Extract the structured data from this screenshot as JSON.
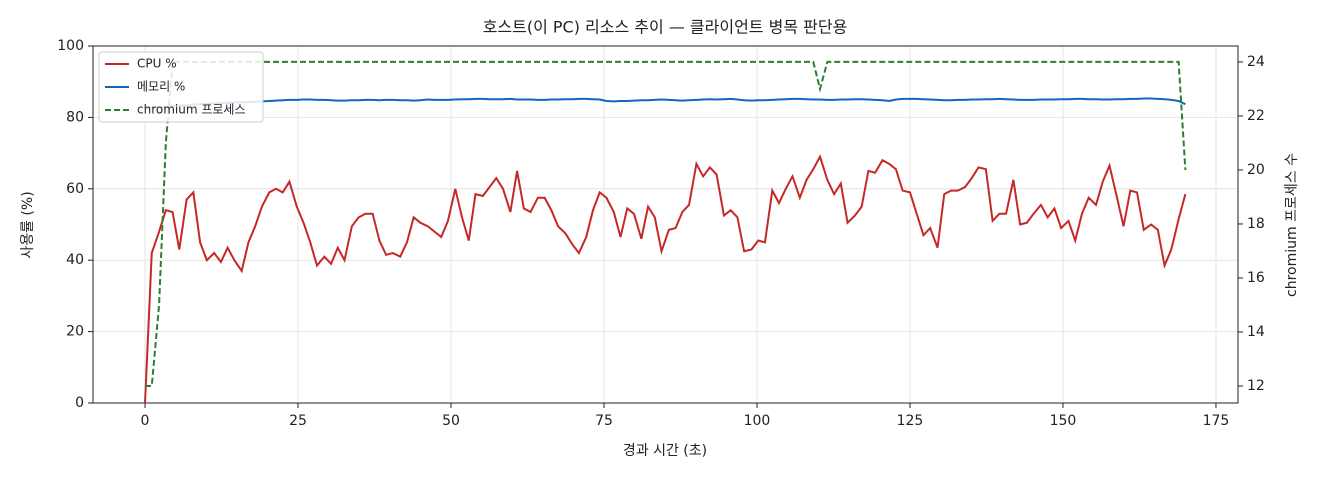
{
  "chart_data": {
    "type": "line",
    "title": "호스트(이 PC) 리소스 추이 — 클라이언트 병목 판단용",
    "xlabel": "경과 시간 (초)",
    "ylabel": "사용률 (%)",
    "y2label": "chromium 프로세스 수",
    "x": [
      0,
      1.1,
      2.3,
      3.4,
      4.5,
      5.6,
      6.8,
      7.9,
      9.0,
      10.1,
      11.3,
      12.4,
      13.5,
      14.6,
      15.8,
      16.9,
      18.0,
      19.1,
      20.3,
      21.4,
      22.5,
      23.6,
      24.8,
      25.9,
      27.0,
      28.1,
      29.3,
      30.4,
      31.5,
      32.6,
      33.8,
      34.9,
      36.0,
      37.2,
      38.3,
      39.4,
      40.5,
      41.7,
      42.8,
      43.9,
      45.0,
      46.2,
      47.3,
      48.4,
      49.5,
      50.7,
      51.8,
      52.9,
      54.0,
      55.2,
      56.3,
      57.4,
      58.5,
      59.7,
      60.8,
      61.9,
      63.0,
      64.2,
      65.3,
      66.4,
      67.5,
      68.7,
      69.8,
      70.9,
      72.1,
      73.2,
      74.3,
      75.4,
      76.6,
      77.7,
      78.8,
      79.9,
      81.1,
      82.2,
      83.3,
      84.4,
      85.6,
      86.7,
      87.8,
      88.9,
      90.1,
      91.2,
      92.3,
      93.4,
      94.6,
      95.7,
      96.8,
      97.9,
      99.1,
      100.2,
      101.3,
      102.5,
      103.6,
      104.7,
      105.8,
      107.0,
      108.1,
      109.2,
      110.3,
      111.5,
      112.6,
      113.7,
      114.8,
      116.0,
      117.1,
      118.2,
      119.3,
      120.5,
      121.6,
      122.7,
      123.8,
      125.0,
      126.1,
      127.2,
      128.3,
      129.5,
      130.6,
      131.7,
      132.8,
      134.0,
      135.1,
      136.2,
      137.4,
      138.5,
      139.6,
      140.7,
      141.9,
      143.0,
      144.1,
      145.2,
      146.4,
      147.5,
      148.6,
      149.7,
      150.9,
      152.0,
      153.1,
      154.2,
      155.4,
      156.5,
      157.6,
      158.7,
      159.9,
      161.0,
      162.1,
      163.2,
      164.4,
      165.5,
      166.6,
      167.7,
      168.9,
      170.0
    ],
    "series": [
      {
        "name": "CPU %",
        "color": "#c62828",
        "linestyle": "solid",
        "values": [
          0,
          42,
          48,
          54,
          53.5,
          43,
          57,
          59,
          45,
          40,
          42,
          39.5,
          43.5,
          40,
          37,
          45,
          49.5,
          55,
          59,
          60,
          59,
          62,
          55,
          50.5,
          45,
          38.5,
          41,
          39,
          43.5,
          40,
          49.5,
          52,
          53,
          53,
          45.5,
          41.5,
          42,
          41,
          45,
          52,
          50.5,
          49.5,
          48,
          46.5,
          51,
          60,
          52,
          45.5,
          58.5,
          58,
          60.5,
          63,
          60,
          53.5,
          65,
          54.5,
          53.5,
          57.5,
          57.5,
          54,
          49.5,
          47.5,
          44.5,
          42,
          46.5,
          54,
          59,
          57.5,
          53.5,
          46.5,
          54.5,
          53,
          46,
          55,
          52,
          42.5,
          48.5,
          49,
          53.5,
          55.5,
          67,
          63.5,
          66,
          64,
          52.5,
          54,
          52,
          42.5,
          43,
          45.5,
          45,
          59.5,
          56,
          60,
          63.5,
          57.5,
          62.5,
          65.5,
          69,
          62.5,
          58.5,
          61.5,
          50.5,
          52.5,
          55,
          65,
          64.5,
          68,
          67,
          65.5,
          59.5,
          59,
          53,
          47,
          49,
          43.5,
          58.5,
          59.5,
          59.5,
          60.5,
          63,
          66,
          65.5,
          51,
          53,
          53,
          62.5,
          50,
          50.5,
          53,
          55.5,
          52,
          54.5,
          49,
          51,
          45.5,
          53,
          57.5,
          55.5,
          62,
          66.5,
          58.5,
          49.5,
          59.5,
          59,
          48.5,
          50,
          48.5,
          38.5,
          43,
          51.5,
          58.5
        ]
      },
      {
        "name": "메모리 %",
        "color": "#1565c0",
        "linestyle": "solid",
        "values": [
          82.5,
          82.7,
          82.9,
          83.0,
          83.2,
          83.3,
          83.4,
          83.6,
          83.7,
          83.8,
          83.9,
          84.0,
          84.1,
          84.2,
          84.2,
          84.3,
          84.4,
          84.5,
          84.6,
          84.7,
          84.8,
          84.9,
          84.9,
          85.0,
          85.0,
          84.9,
          84.9,
          84.8,
          84.7,
          84.7,
          84.8,
          84.8,
          84.9,
          84.9,
          84.8,
          84.9,
          84.9,
          84.8,
          84.8,
          84.7,
          84.8,
          85.0,
          84.9,
          84.9,
          84.9,
          85.0,
          85.1,
          85.1,
          85.2,
          85.2,
          85.1,
          85.1,
          85.1,
          85.2,
          85.0,
          85.0,
          85.0,
          84.9,
          84.9,
          85.0,
          85.0,
          85.1,
          85.1,
          85.2,
          85.2,
          85.1,
          85.0,
          84.6,
          84.5,
          84.6,
          84.6,
          84.7,
          84.8,
          84.8,
          84.9,
          85.0,
          84.9,
          84.8,
          84.7,
          84.8,
          84.9,
          85.0,
          85.1,
          85.0,
          85.1,
          85.2,
          85.0,
          84.8,
          84.7,
          84.8,
          84.8,
          84.9,
          85.0,
          85.1,
          85.2,
          85.2,
          85.1,
          85.0,
          85.0,
          84.9,
          84.9,
          85.0,
          85.0,
          85.1,
          85.1,
          85.0,
          84.9,
          84.8,
          84.6,
          85.0,
          85.2,
          85.2,
          85.2,
          85.1,
          85.0,
          84.9,
          84.8,
          84.8,
          84.9,
          84.9,
          85.0,
          85.0,
          85.1,
          85.1,
          85.2,
          85.1,
          85.0,
          84.9,
          84.9,
          84.9,
          85.0,
          85.0,
          85.0,
          85.1,
          85.1,
          85.2,
          85.2,
          85.1,
          85.1,
          85.0,
          85.0,
          85.1,
          85.1,
          85.2,
          85.2,
          85.3,
          85.3,
          85.2,
          85.1,
          84.9,
          84.6,
          83.7
        ]
      },
      {
        "name": "chromium 프로세스",
        "color": "#2e7d32",
        "linestyle": "dashed",
        "axis": "y2",
        "values": [
          12,
          12,
          15,
          21,
          24,
          24,
          24,
          24,
          24,
          24,
          24,
          24,
          24,
          24,
          24,
          24,
          24,
          24,
          24,
          24,
          24,
          24,
          24,
          24,
          24,
          24,
          24,
          24,
          24,
          24,
          24,
          24,
          24,
          24,
          24,
          24,
          24,
          24,
          24,
          24,
          24,
          24,
          24,
          24,
          24,
          24,
          24,
          24,
          24,
          24,
          24,
          24,
          24,
          24,
          24,
          24,
          24,
          24,
          24,
          24,
          24,
          24,
          24,
          24,
          24,
          24,
          24,
          24,
          24,
          24,
          24,
          24,
          24,
          24,
          24,
          24,
          24,
          24,
          24,
          24,
          24,
          24,
          24,
          24,
          24,
          24,
          24,
          24,
          24,
          24,
          24,
          24,
          24,
          24,
          24,
          24,
          24,
          24,
          23,
          24,
          24,
          24,
          24,
          24,
          24,
          24,
          24,
          24,
          24,
          24,
          24,
          24,
          24,
          24,
          24,
          24,
          24,
          24,
          24,
          24,
          24,
          24,
          24,
          24,
          24,
          24,
          24,
          24,
          24,
          24,
          24,
          24,
          24,
          24,
          24,
          24,
          24,
          24,
          24,
          24,
          24,
          24,
          24,
          24,
          24,
          24,
          24,
          24,
          24,
          24,
          24,
          20
        ]
      }
    ],
    "xlim": [
      -8.5,
      178.6
    ],
    "xticks": [
      0,
      25,
      50,
      75,
      100,
      125,
      150,
      175
    ],
    "ylim": [
      0,
      100
    ],
    "yticks": [
      0,
      20,
      40,
      60,
      80,
      100
    ],
    "y2lim": [
      11.37,
      24.59
    ],
    "y2ticks": [
      12,
      14,
      16,
      18,
      20,
      22,
      24
    ],
    "grid": true,
    "legend": "upper left"
  }
}
